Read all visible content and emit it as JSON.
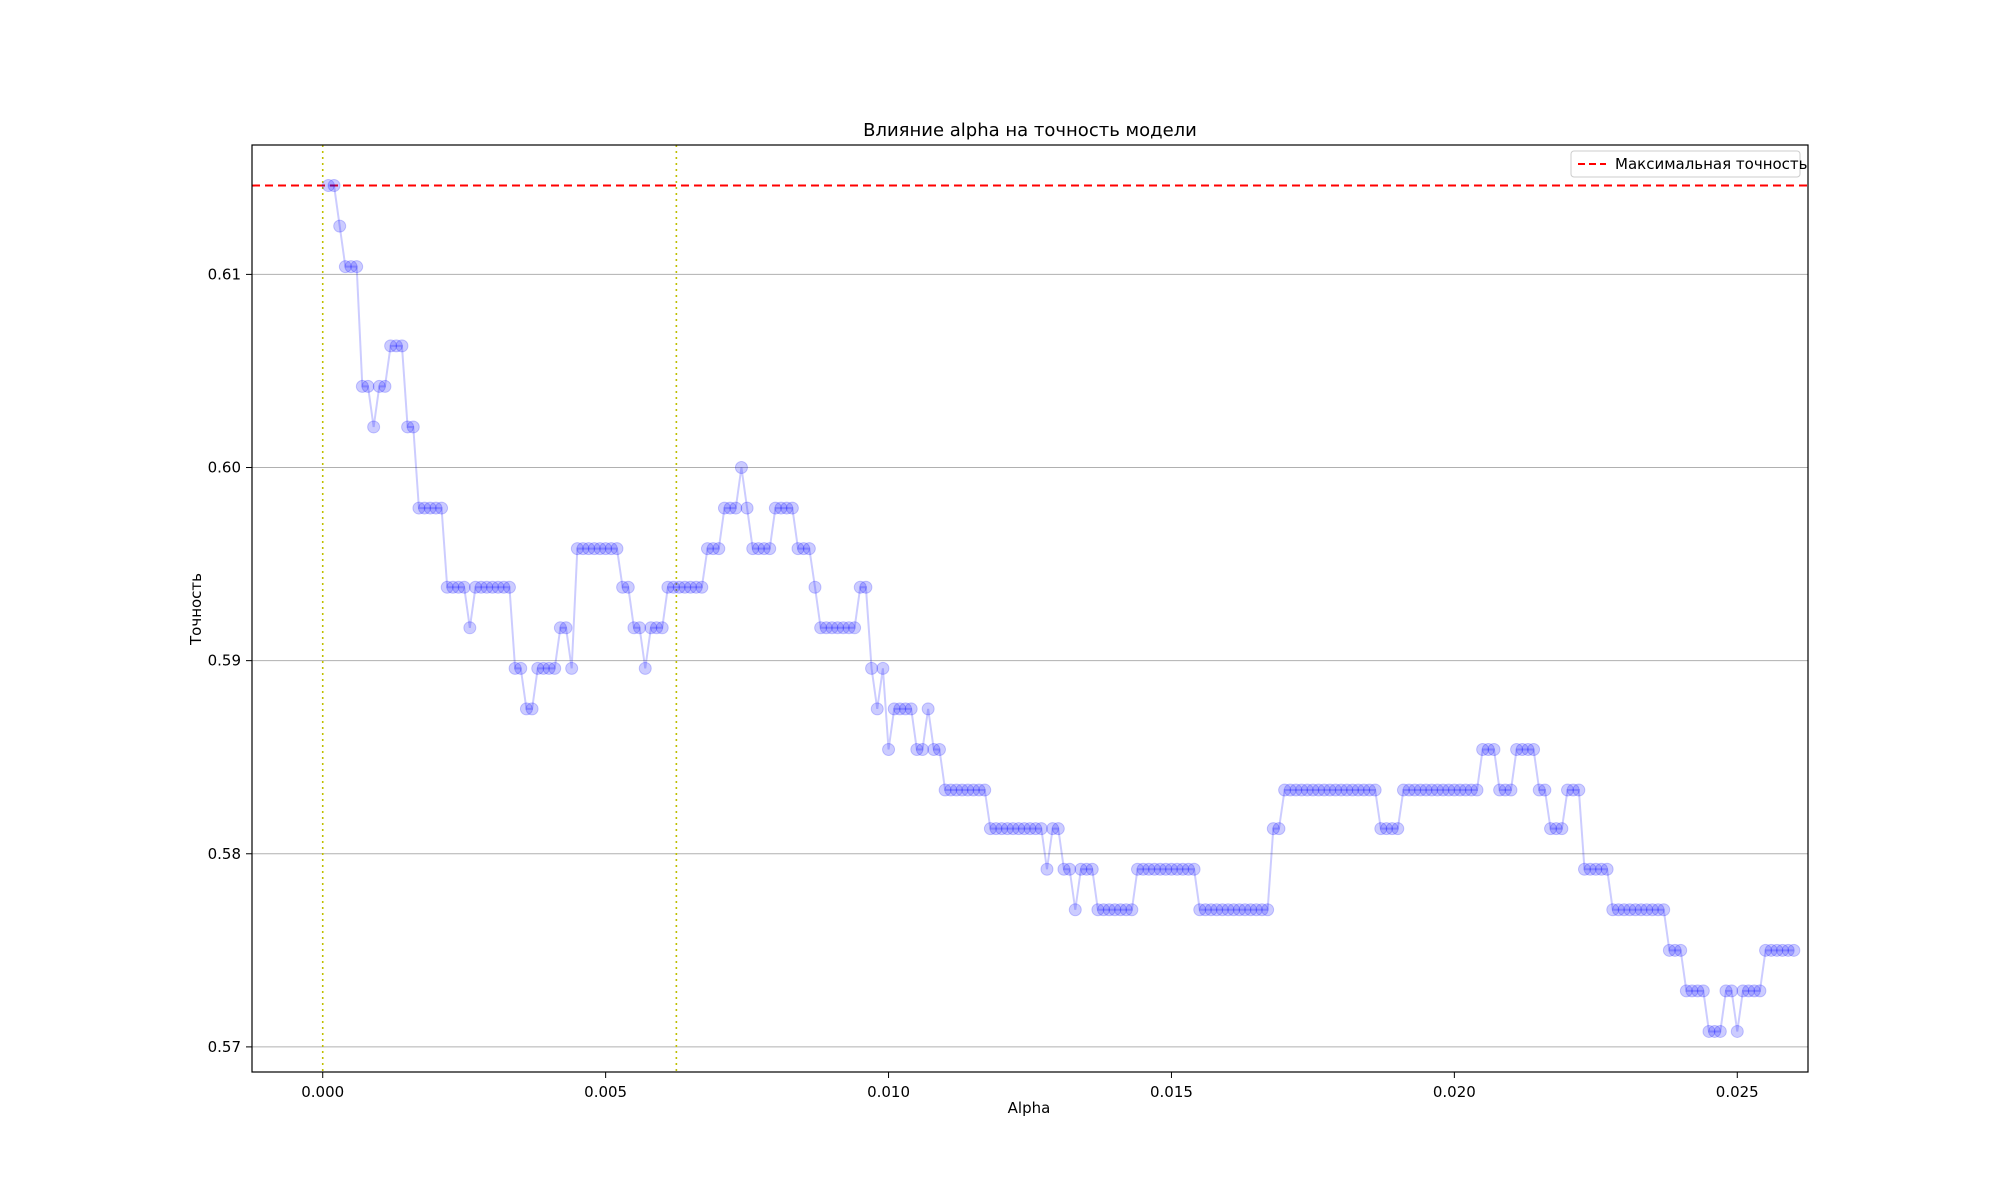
{
  "chart_data": {
    "type": "line",
    "title": "Влияние alpha на точность модели",
    "xlabel": "Alpha",
    "ylabel": "Точность",
    "xlim": [
      -0.00125,
      0.02625
    ],
    "ylim": [
      0.5687,
      0.6167
    ],
    "xticks": [
      0.0,
      0.005,
      0.01,
      0.015,
      0.02,
      0.025
    ],
    "xtick_labels": [
      "0.000",
      "0.005",
      "0.010",
      "0.015",
      "0.020",
      "0.025"
    ],
    "yticks": [
      0.57,
      0.58,
      0.59,
      0.6,
      0.61
    ],
    "ytick_labels": [
      "0.57",
      "0.58",
      "0.59",
      "0.60",
      "0.61"
    ],
    "grid": "y-axis only",
    "legend": {
      "placement": "upper-right",
      "entries": [
        "Максимальная точность"
      ]
    },
    "x_start": 0.0001,
    "x_step": 0.0001,
    "series": [
      {
        "color": "#0000ff",
        "alpha": 0.2,
        "marker": "circle",
        "values": [
          0.6146,
          0.6146,
          0.6125,
          0.6104,
          0.6104,
          0.6104,
          0.6042,
          0.6042,
          0.6021,
          0.6042,
          0.6042,
          0.6063,
          0.6063,
          0.6063,
          0.6021,
          0.6021,
          0.5979,
          0.5979,
          0.5979,
          0.5979,
          0.5979,
          0.5938,
          0.5938,
          0.5938,
          0.5938,
          0.5917,
          0.5938,
          0.5938,
          0.5938,
          0.5938,
          0.5938,
          0.5938,
          0.5938,
          0.5896,
          0.5896,
          0.5875,
          0.5875,
          0.5896,
          0.5896,
          0.5896,
          0.5896,
          0.5917,
          0.5917,
          0.5896,
          0.5958,
          0.5958,
          0.5958,
          0.5958,
          0.5958,
          0.5958,
          0.5958,
          0.5958,
          0.5938,
          0.5938,
          0.5917,
          0.5917,
          0.5896,
          0.5917,
          0.5917,
          0.5917,
          0.5938,
          0.5938,
          0.5938,
          0.5938,
          0.5938,
          0.5938,
          0.5938,
          0.5958,
          0.5958,
          0.5958,
          0.5979,
          0.5979,
          0.5979,
          0.6,
          0.5979,
          0.5958,
          0.5958,
          0.5958,
          0.5958,
          0.5979,
          0.5979,
          0.5979,
          0.5979,
          0.5958,
          0.5958,
          0.5958,
          0.5938,
          0.5917,
          0.5917,
          0.5917,
          0.5917,
          0.5917,
          0.5917,
          0.5917,
          0.5938,
          0.5938,
          0.5896,
          0.5875,
          0.5896,
          0.5854,
          0.5875,
          0.5875,
          0.5875,
          0.5875,
          0.5854,
          0.5854,
          0.5875,
          0.5854,
          0.5854,
          0.5833,
          0.5833,
          0.5833,
          0.5833,
          0.5833,
          0.5833,
          0.5833,
          0.5833,
          0.5813,
          0.5813,
          0.5813,
          0.5813,
          0.5813,
          0.5813,
          0.5813,
          0.5813,
          0.5813,
          0.5813,
          0.5792,
          0.5813,
          0.5813,
          0.5792,
          0.5792,
          0.5771,
          0.5792,
          0.5792,
          0.5792,
          0.5771,
          0.5771,
          0.5771,
          0.5771,
          0.5771,
          0.5771,
          0.5771,
          0.5792,
          0.5792,
          0.5792,
          0.5792,
          0.5792,
          0.5792,
          0.5792,
          0.5792,
          0.5792,
          0.5792,
          0.5792,
          0.5771,
          0.5771,
          0.5771,
          0.5771,
          0.5771,
          0.5771,
          0.5771,
          0.5771,
          0.5771,
          0.5771,
          0.5771,
          0.5771,
          0.5771,
          0.5813,
          0.5813,
          0.5833,
          0.5833,
          0.5833,
          0.5833,
          0.5833,
          0.5833,
          0.5833,
          0.5833,
          0.5833,
          0.5833,
          0.5833,
          0.5833,
          0.5833,
          0.5833,
          0.5833,
          0.5833,
          0.5833,
          0.5813,
          0.5813,
          0.5813,
          0.5813,
          0.5833,
          0.5833,
          0.5833,
          0.5833,
          0.5833,
          0.5833,
          0.5833,
          0.5833,
          0.5833,
          0.5833,
          0.5833,
          0.5833,
          0.5833,
          0.5833,
          0.5854,
          0.5854,
          0.5854,
          0.5833,
          0.5833,
          0.5833,
          0.5854,
          0.5854,
          0.5854,
          0.5854,
          0.5833,
          0.5833,
          0.5813,
          0.5813,
          0.5813,
          0.5833,
          0.5833,
          0.5833,
          0.5792,
          0.5792,
          0.5792,
          0.5792,
          0.5792,
          0.5771,
          0.5771,
          0.5771,
          0.5771,
          0.5771,
          0.5771,
          0.5771,
          0.5771,
          0.5771,
          0.5771,
          0.575,
          0.575,
          0.575,
          0.5729,
          0.5729,
          0.5729,
          0.5729,
          0.5708,
          0.5708,
          0.5708,
          0.5729,
          0.5729,
          0.5708,
          0.5729,
          0.5729,
          0.5729,
          0.5729,
          0.575,
          0.575,
          0.575,
          0.575,
          0.575,
          0.575
        ]
      }
    ],
    "reference_lines": [
      {
        "orientation": "horizontal",
        "value": 0.6146,
        "color": "#ff0000",
        "style": "dashed",
        "label": "Максимальная точность"
      },
      {
        "orientation": "vertical",
        "value": 0.0,
        "color": "#bfbf00",
        "style": "dotted"
      },
      {
        "orientation": "vertical",
        "value": 0.00625,
        "color": "#bfbf00",
        "style": "dotted"
      }
    ]
  }
}
